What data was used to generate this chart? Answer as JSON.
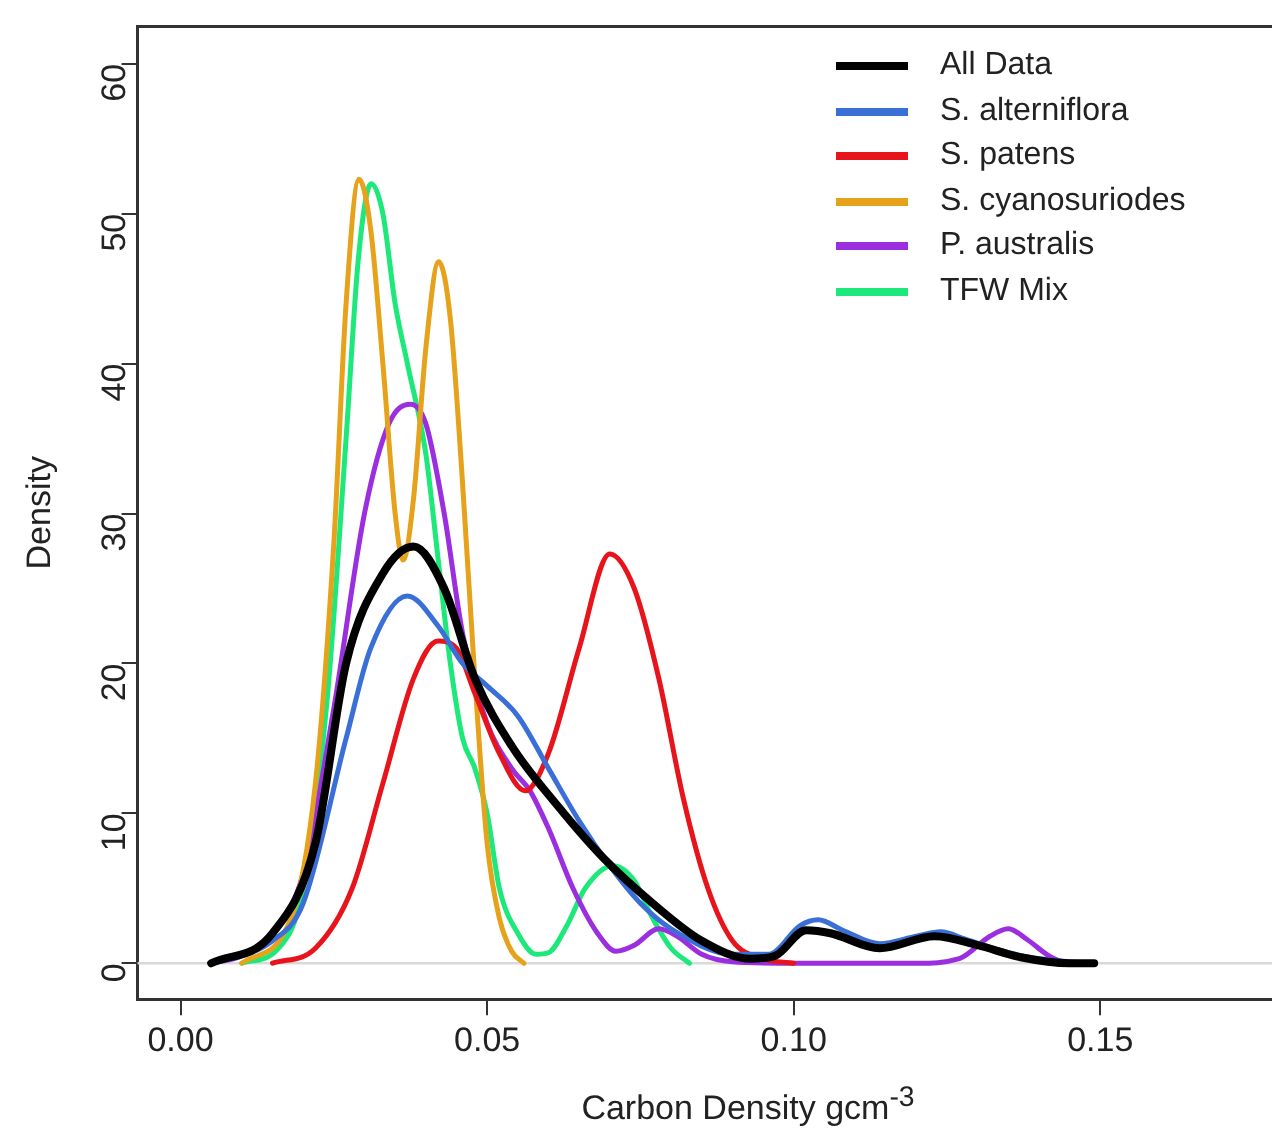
{
  "chart_data": {
    "type": "line",
    "xlabel": "Carbon Density gcm$^{-3}$",
    "ylabel": "Density",
    "xlim": [
      -0.007,
      0.178
    ],
    "ylim": [
      -2.4,
      62.5
    ],
    "xticks": [
      {
        "value": 0,
        "label": "0.00"
      },
      {
        "value": 0.05,
        "label": "0.05"
      },
      {
        "value": 0.1,
        "label": "0.10"
      },
      {
        "value": 0.15,
        "label": "0.15"
      }
    ],
    "yticks": [
      0,
      10,
      20,
      30,
      40,
      50,
      60
    ],
    "grid": false,
    "legend": "top right",
    "marker": "none",
    "line_style": "solid",
    "ref_lines": [
      {
        "axis": "y",
        "value": 0,
        "color": "#d9d9d9"
      }
    ],
    "series": [
      {
        "name": "All Data",
        "color": "#000000",
        "x": [
          0.005,
          0.015,
          0.022,
          0.027,
          0.033,
          0.038,
          0.043,
          0.048,
          0.054,
          0.0615,
          0.069,
          0.077,
          0.085,
          0.093,
          0.097,
          0.102,
          0.106,
          0.114,
          0.123,
          0.13,
          0.137,
          0.145,
          0.149
        ],
        "values": [
          0,
          2,
          8,
          20,
          26,
          27.8,
          25,
          19,
          14.5,
          10.5,
          7,
          4,
          1.5,
          0.3,
          0.5,
          2.2,
          2,
          1,
          1.8,
          1.2,
          0.4,
          0,
          0
        ]
      },
      {
        "name": "S. alterniflora",
        "color": "#3a6fd8",
        "x": [
          0.005,
          0.015,
          0.02,
          0.027,
          0.031,
          0.037,
          0.042,
          0.046,
          0.05,
          0.055,
          0.06,
          0.065,
          0.07,
          0.075,
          0.08,
          0.09,
          0.096,
          0.101,
          0.104,
          0.108,
          0.114,
          0.12,
          0.124,
          0.128,
          0.135,
          0.142,
          0.149
        ],
        "values": [
          0,
          1.5,
          4,
          15,
          21,
          24.5,
          22.5,
          20,
          18.5,
          16.5,
          13,
          9.5,
          6.5,
          4,
          2.3,
          0.6,
          0.6,
          2.5,
          2.9,
          2.2,
          1.3,
          1.8,
          2.1,
          1.6,
          0.7,
          0.2,
          0
        ]
      },
      {
        "name": "S. patens",
        "color": "#e8141b",
        "x": [
          0.015,
          0.022,
          0.028,
          0.033,
          0.038,
          0.042,
          0.045,
          0.048,
          0.052,
          0.0562,
          0.06,
          0.065,
          0.07,
          0.074,
          0.078,
          0.082,
          0.086,
          0.09,
          0.095,
          0.1
        ],
        "values": [
          0,
          1,
          5,
          12,
          19,
          21.5,
          21,
          18,
          14,
          11.5,
          14,
          21,
          27.3,
          25,
          19,
          11,
          5,
          1.5,
          0.3,
          0
        ]
      },
      {
        "name": "S. cyanosuriodes",
        "color": "#e5a21a",
        "x": [
          0.01,
          0.018,
          0.022,
          0.025,
          0.027,
          0.0291,
          0.031,
          0.033,
          0.035,
          0.0363,
          0.038,
          0.04,
          0.0421,
          0.044,
          0.046,
          0.048,
          0.05,
          0.052,
          0.054,
          0.056
        ],
        "values": [
          0,
          3,
          12,
          28,
          44,
          52.3,
          49,
          40,
          30,
          26.9,
          31,
          41,
          46.8,
          43,
          32,
          19,
          8,
          3,
          0.8,
          0
        ]
      },
      {
        "name": "P. australis",
        "color": "#9b2fe0",
        "x": [
          0.005,
          0.01,
          0.015,
          0.02,
          0.025,
          0.03,
          0.034,
          0.0375,
          0.04,
          0.043,
          0.046,
          0.05,
          0.054,
          0.057,
          0.06,
          0.064,
          0.068,
          0.071,
          0.074,
          0.078,
          0.081,
          0.085,
          0.09,
          0.1,
          0.12,
          0.127,
          0.132,
          0.135,
          0.138,
          0.142,
          0.145,
          0.149
        ],
        "values": [
          0,
          0.5,
          2,
          6,
          17,
          30,
          36,
          37.3,
          36,
          30,
          22,
          16,
          13,
          11.5,
          9,
          5,
          2,
          0.8,
          1.2,
          2.3,
          1.8,
          0.6,
          0.1,
          0,
          0,
          0.3,
          1.8,
          2.3,
          1.6,
          0.4,
          0,
          0
        ]
      },
      {
        "name": "TFW Mix",
        "color": "#1de87a",
        "x": [
          0.01,
          0.016,
          0.02,
          0.024,
          0.027,
          0.029,
          0.0311,
          0.033,
          0.035,
          0.037,
          0.04,
          0.042,
          0.044,
          0.046,
          0.048,
          0.05,
          0.052,
          0.055,
          0.058,
          0.06,
          0.063,
          0.066,
          0.0705,
          0.074,
          0.077,
          0.08,
          0.083
        ],
        "values": [
          0,
          1,
          5,
          18,
          35,
          47,
          52,
          50,
          44,
          40,
          34,
          27,
          20,
          15,
          13,
          10,
          5,
          2,
          0.6,
          0.7,
          2.5,
          5,
          6.5,
          5.5,
          3,
          1,
          0
        ]
      }
    ]
  }
}
